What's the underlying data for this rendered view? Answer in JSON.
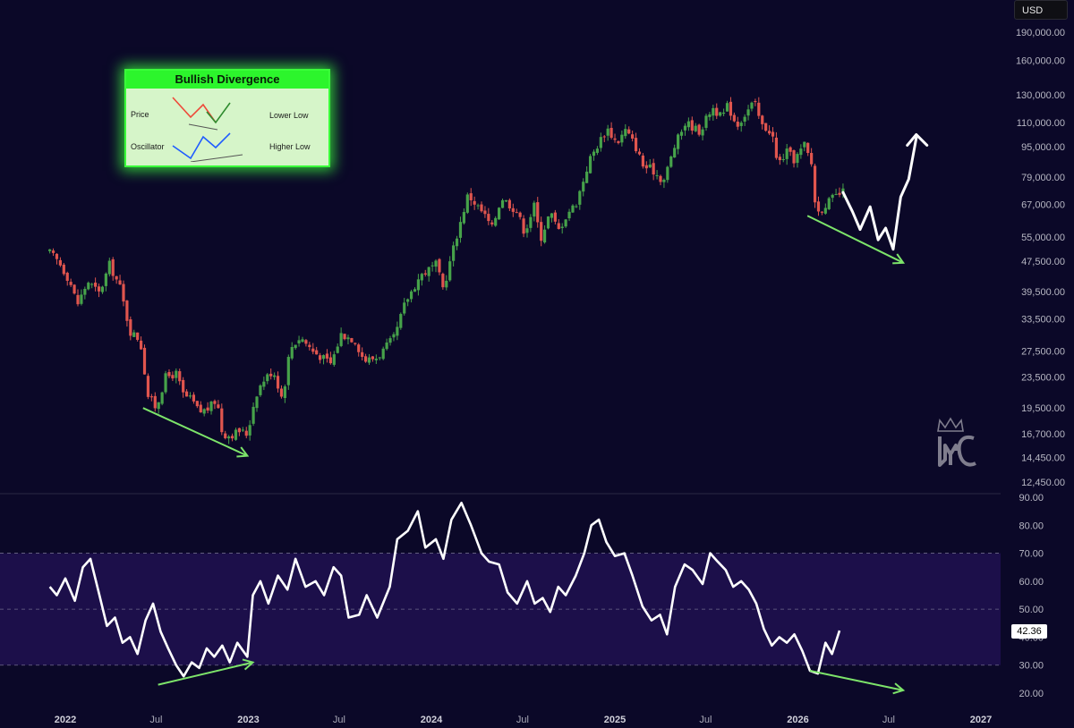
{
  "currency": "USD",
  "legend": {
    "title": "Bullish Divergence",
    "rows": [
      {
        "left": "Price",
        "right": "Lower Low"
      },
      {
        "left": "Oscillator",
        "right": "Higher Low"
      }
    ]
  },
  "rsi_value_label": "42.36",
  "colors": {
    "background": "#0b0828",
    "up_candle": "#46a24a",
    "down_candle": "#e0554e",
    "divergence_arrow": "#7de46a",
    "projection": "#ffffff",
    "rsi_line": "#ffffff",
    "rsi_band": "#1c0f4a",
    "legend_green": "#2cf52c"
  },
  "chart_data": [
    {
      "type": "candlestick",
      "title": "",
      "ylabel": "USD",
      "scale": "log",
      "ylim": [
        11500,
        215000
      ],
      "y_ticks": [
        "190,000.00",
        "160,000.00",
        "130,000.00",
        "110,000.00",
        "95,000.00",
        "79,000.00",
        "67,000.00",
        "55,000.00",
        "47,500.00",
        "39,500.00",
        "33,500.00",
        "27,500.00",
        "23,500.00",
        "19,500.00",
        "16,700.00",
        "14,450.00",
        "12,450.00"
      ],
      "x_ticks": [
        "2022",
        "Jul",
        "2023",
        "Jul",
        "2024",
        "Jul",
        "2025",
        "Jul",
        "2026",
        "Jul",
        "2027"
      ],
      "price_path": [
        [
          "2021-12-01",
          50000
        ],
        [
          "2021-12-20",
          47000
        ],
        [
          "2022-01-10",
          42000
        ],
        [
          "2022-01-25",
          36500
        ],
        [
          "2022-02-15",
          42000
        ],
        [
          "2022-03-10",
          39000
        ],
        [
          "2022-03-30",
          46500
        ],
        [
          "2022-04-20",
          40500
        ],
        [
          "2022-05-10",
          31000
        ],
        [
          "2022-05-30",
          29500
        ],
        [
          "2022-06-15",
          21000
        ],
        [
          "2022-07-01",
          19500
        ],
        [
          "2022-07-20",
          23500
        ],
        [
          "2022-08-10",
          24000
        ],
        [
          "2022-08-25",
          21000
        ],
        [
          "2022-09-10",
          20500
        ],
        [
          "2022-09-25",
          19000
        ],
        [
          "2022-10-15",
          19500
        ],
        [
          "2022-10-30",
          20600
        ],
        [
          "2022-11-10",
          16700
        ],
        [
          "2022-11-25",
          16500
        ],
        [
          "2022-12-15",
          17000
        ],
        [
          "2022-12-30",
          16600
        ],
        [
          "2023-01-15",
          21000
        ],
        [
          "2023-01-30",
          23000
        ],
        [
          "2023-02-20",
          24500
        ],
        [
          "2023-03-10",
          20500
        ],
        [
          "2023-03-25",
          28000
        ],
        [
          "2023-04-15",
          30000
        ],
        [
          "2023-05-10",
          27500
        ],
        [
          "2023-06-15",
          25500
        ],
        [
          "2023-07-05",
          30500
        ],
        [
          "2023-08-01",
          29500
        ],
        [
          "2023-08-20",
          26000
        ],
        [
          "2023-09-15",
          26500
        ],
        [
          "2023-10-20",
          30000
        ],
        [
          "2023-11-10",
          37000
        ],
        [
          "2023-12-10",
          43500
        ],
        [
          "2024-01-10",
          46500
        ],
        [
          "2024-01-25",
          40000
        ],
        [
          "2024-02-15",
          52000
        ],
        [
          "2024-03-14",
          71000
        ],
        [
          "2024-04-15",
          63000
        ],
        [
          "2024-05-01",
          58000
        ],
        [
          "2024-05-20",
          70000
        ],
        [
          "2024-06-20",
          64000
        ],
        [
          "2024-07-05",
          56500
        ],
        [
          "2024-07-25",
          67000
        ],
        [
          "2024-08-05",
          54000
        ],
        [
          "2024-08-25",
          64000
        ],
        [
          "2024-09-10",
          57000
        ],
        [
          "2024-09-30",
          64000
        ],
        [
          "2024-10-15",
          67000
        ],
        [
          "2024-11-12",
          88000
        ],
        [
          "2024-12-05",
          100000
        ],
        [
          "2024-12-17",
          106000
        ],
        [
          "2025-01-05",
          97000
        ],
        [
          "2025-01-22",
          105000
        ],
        [
          "2025-02-10",
          96000
        ],
        [
          "2025-02-27",
          84000
        ],
        [
          "2025-03-15",
          83000
        ],
        [
          "2025-04-08",
          77000
        ],
        [
          "2025-05-01",
          96000
        ],
        [
          "2025-05-22",
          110000
        ],
        [
          "2025-06-20",
          104000
        ],
        [
          "2025-07-14",
          121000
        ],
        [
          "2025-08-02",
          113000
        ],
        [
          "2025-08-14",
          122000
        ],
        [
          "2025-09-01",
          108000
        ],
        [
          "2025-10-06",
          125000
        ],
        [
          "2025-10-20",
          108000
        ],
        [
          "2025-11-10",
          104000
        ],
        [
          "2025-11-21",
          85000
        ],
        [
          "2025-12-10",
          92000
        ],
        [
          "2025-12-25",
          87500
        ],
        [
          "2026-01-14",
          96000
        ],
        [
          "2026-01-30",
          84000
        ],
        [
          "2026-02-06",
          63000
        ],
        [
          "2026-02-25",
          67000
        ],
        [
          "2026-03-15",
          70000
        ],
        [
          "2026-04-01",
          72000
        ]
      ],
      "projection": [
        [
          "2026-04-01",
          72000
        ],
        [
          "2026-04-20",
          64000
        ],
        [
          "2026-05-05",
          57500
        ],
        [
          "2026-05-25",
          66000
        ],
        [
          "2026-06-10",
          54000
        ],
        [
          "2026-06-25",
          58000
        ],
        [
          "2026-07-10",
          51000
        ],
        [
          "2026-07-25",
          70000
        ],
        [
          "2026-08-10",
          78000
        ],
        [
          "2026-08-25",
          100000
        ]
      ],
      "divergence_arrows": [
        {
          "from": [
            "2022-06-05",
            19500
          ],
          "to": [
            "2022-12-30",
            14600
          ]
        },
        {
          "from": [
            "2026-01-20",
            62500
          ],
          "to": [
            "2026-07-30",
            47000
          ]
        }
      ]
    },
    {
      "type": "line",
      "title": "",
      "ylim": [
        15,
        93
      ],
      "y_ticks": [
        "90.00",
        "80.00",
        "70.00",
        "60.00",
        "50.00",
        "40.00",
        "30.00",
        "20.00"
      ],
      "band": [
        30,
        70
      ],
      "midline": 50,
      "last_value": 42.36,
      "series": [
        {
          "values": [
            [
              "2021-12-01",
              58
            ],
            [
              "2021-12-15",
              55
            ],
            [
              "2022-01-01",
              61
            ],
            [
              "2022-01-20",
              53
            ],
            [
              "2022-02-05",
              65
            ],
            [
              "2022-02-20",
              68
            ],
            [
              "2022-03-10",
              55
            ],
            [
              "2022-03-25",
              44
            ],
            [
              "2022-04-10",
              47
            ],
            [
              "2022-04-25",
              38
            ],
            [
              "2022-05-10",
              40
            ],
            [
              "2022-05-25",
              34
            ],
            [
              "2022-06-10",
              46
            ],
            [
              "2022-06-25",
              52
            ],
            [
              "2022-07-10",
              42
            ],
            [
              "2022-07-25",
              36
            ],
            [
              "2022-08-10",
              30
            ],
            [
              "2022-08-25",
              26
            ],
            [
              "2022-09-10",
              31
            ],
            [
              "2022-09-25",
              29
            ],
            [
              "2022-10-10",
              36
            ],
            [
              "2022-10-25",
              33
            ],
            [
              "2022-11-10",
              37
            ],
            [
              "2022-11-25",
              31
            ],
            [
              "2022-12-10",
              38
            ],
            [
              "2022-12-30",
              33
            ],
            [
              "2023-01-10",
              55
            ],
            [
              "2023-01-25",
              60
            ],
            [
              "2023-02-10",
              52
            ],
            [
              "2023-03-01",
              62
            ],
            [
              "2023-03-20",
              57
            ],
            [
              "2023-04-05",
              68
            ],
            [
              "2023-04-25",
              58
            ],
            [
              "2023-05-15",
              60
            ],
            [
              "2023-06-01",
              55
            ],
            [
              "2023-06-20",
              65
            ],
            [
              "2023-07-05",
              62
            ],
            [
              "2023-07-20",
              47
            ],
            [
              "2023-08-10",
              48
            ],
            [
              "2023-08-25",
              55
            ],
            [
              "2023-09-15",
              47
            ],
            [
              "2023-10-10",
              58
            ],
            [
              "2023-10-25",
              75
            ],
            [
              "2023-11-15",
              78
            ],
            [
              "2023-12-05",
              85
            ],
            [
              "2023-12-20",
              72
            ],
            [
              "2024-01-10",
              75
            ],
            [
              "2024-01-25",
              68
            ],
            [
              "2024-02-10",
              82
            ],
            [
              "2024-03-01",
              88
            ],
            [
              "2024-03-20",
              80
            ],
            [
              "2024-04-10",
              70
            ],
            [
              "2024-04-25",
              67
            ],
            [
              "2024-05-15",
              66
            ],
            [
              "2024-06-01",
              56
            ],
            [
              "2024-06-20",
              52
            ],
            [
              "2024-07-10",
              60
            ],
            [
              "2024-07-25",
              52
            ],
            [
              "2024-08-10",
              54
            ],
            [
              "2024-08-25",
              49
            ],
            [
              "2024-09-10",
              58
            ],
            [
              "2024-09-25",
              55
            ],
            [
              "2024-10-15",
              62
            ],
            [
              "2024-11-01",
              70
            ],
            [
              "2024-11-15",
              80
            ],
            [
              "2024-11-30",
              82
            ],
            [
              "2024-12-15",
              74
            ],
            [
              "2025-01-01",
              69
            ],
            [
              "2025-01-20",
              70
            ],
            [
              "2025-02-05",
              62
            ],
            [
              "2025-02-25",
              51
            ],
            [
              "2025-03-15",
              46
            ],
            [
              "2025-04-01",
              48
            ],
            [
              "2025-04-15",
              41
            ],
            [
              "2025-05-01",
              58
            ],
            [
              "2025-05-20",
              66
            ],
            [
              "2025-06-05",
              64
            ],
            [
              "2025-06-25",
              59
            ],
            [
              "2025-07-10",
              70
            ],
            [
              "2025-07-25",
              67
            ],
            [
              "2025-08-10",
              64
            ],
            [
              "2025-08-25",
              58
            ],
            [
              "2025-09-10",
              60
            ],
            [
              "2025-09-25",
              57
            ],
            [
              "2025-10-10",
              52
            ],
            [
              "2025-10-25",
              43
            ],
            [
              "2025-11-10",
              37
            ],
            [
              "2025-11-25",
              40
            ],
            [
              "2025-12-10",
              38
            ],
            [
              "2025-12-25",
              41
            ],
            [
              "2026-01-10",
              35
            ],
            [
              "2026-01-25",
              28
            ],
            [
              "2026-02-10",
              27
            ],
            [
              "2026-02-25",
              38
            ],
            [
              "2026-03-10",
              34
            ],
            [
              "2026-03-25",
              42.36
            ]
          ]
        }
      ],
      "divergence_arrows": [
        {
          "from": [
            "2022-07-05",
            23
          ],
          "to": [
            "2023-01-10",
            31
          ]
        },
        {
          "from": [
            "2026-01-25",
            28
          ],
          "to": [
            "2026-07-30",
            21
          ]
        }
      ]
    }
  ]
}
